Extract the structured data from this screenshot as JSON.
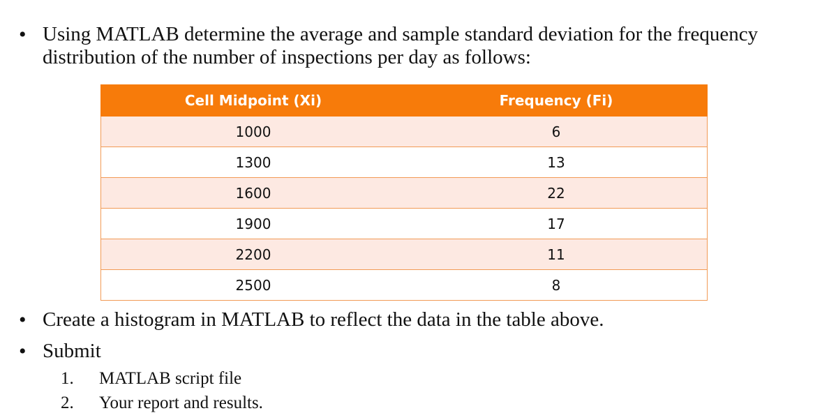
{
  "intro": {
    "bullet": "•",
    "line1": "Using MATLAB determine the average and sample standard deviation for the frequency",
    "line2": "distribution of the number of inspections per day as follows:"
  },
  "table": {
    "headers": [
      "Cell Midpoint (Xi)",
      "Frequency (Fi)"
    ],
    "rows": [
      [
        "1000",
        "6"
      ],
      [
        "1300",
        "13"
      ],
      [
        "1600",
        "22"
      ],
      [
        "1900",
        "17"
      ],
      [
        "2200",
        "11"
      ],
      [
        "2500",
        "8"
      ]
    ],
    "header_color": "#f77b0a",
    "stripe_color": "#fde9e2"
  },
  "bullets": [
    {
      "bullet": "•",
      "text": "Create a histogram in MATLAB to reflect the data in the table above."
    },
    {
      "bullet": "•",
      "text": "Submit"
    }
  ],
  "submit_items": [
    {
      "number": "1.",
      "text": "MATLAB script file"
    },
    {
      "number": "2.",
      "text": "Your report and results."
    }
  ]
}
